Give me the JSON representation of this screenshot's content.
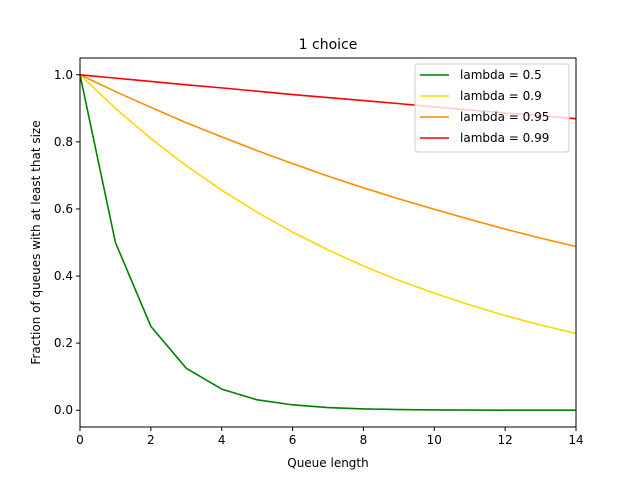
{
  "chart_data": {
    "type": "line",
    "title": "1 choice",
    "xlabel": "Queue length",
    "ylabel": "Fraction of queues with at least that size",
    "xlim": [
      0,
      14
    ],
    "ylim": [
      -0.05,
      1.05
    ],
    "xticks": [
      0,
      2,
      4,
      6,
      8,
      10,
      12,
      14
    ],
    "xtick_labels": [
      "0",
      "2",
      "4",
      "6",
      "8",
      "10",
      "12",
      "14"
    ],
    "yticks": [
      0.0,
      0.2,
      0.4,
      0.6,
      0.8,
      1.0
    ],
    "ytick_labels": [
      "0.0",
      "0.2",
      "0.4",
      "0.6",
      "0.8",
      "1.0"
    ],
    "grid": false,
    "legend_position": "top-right",
    "x": [
      0,
      1,
      2,
      3,
      4,
      5,
      6,
      7,
      8,
      9,
      10,
      11,
      12,
      13,
      14
    ],
    "series": [
      {
        "name": "lambda = 0.5",
        "color": "#008000",
        "values": [
          1.0,
          0.5,
          0.25,
          0.125,
          0.063,
          0.031,
          0.016,
          0.008,
          0.004,
          0.002,
          0.001,
          0.0005,
          0.0002,
          0.0001,
          0.0001
        ]
      },
      {
        "name": "lambda = 0.9",
        "color": "#ffd700",
        "values": [
          1.0,
          0.9,
          0.81,
          0.729,
          0.656,
          0.59,
          0.531,
          0.478,
          0.43,
          0.387,
          0.349,
          0.314,
          0.282,
          0.254,
          0.229
        ]
      },
      {
        "name": "lambda = 0.95",
        "color": "#ff8c00",
        "values": [
          1.0,
          0.95,
          0.903,
          0.857,
          0.815,
          0.774,
          0.735,
          0.698,
          0.663,
          0.63,
          0.599,
          0.569,
          0.54,
          0.513,
          0.488
        ]
      },
      {
        "name": "lambda = 0.99",
        "color": "#ff0000",
        "values": [
          1.0,
          0.99,
          0.98,
          0.97,
          0.961,
          0.951,
          0.941,
          0.932,
          0.923,
          0.914,
          0.904,
          0.895,
          0.886,
          0.878,
          0.869
        ]
      }
    ]
  }
}
